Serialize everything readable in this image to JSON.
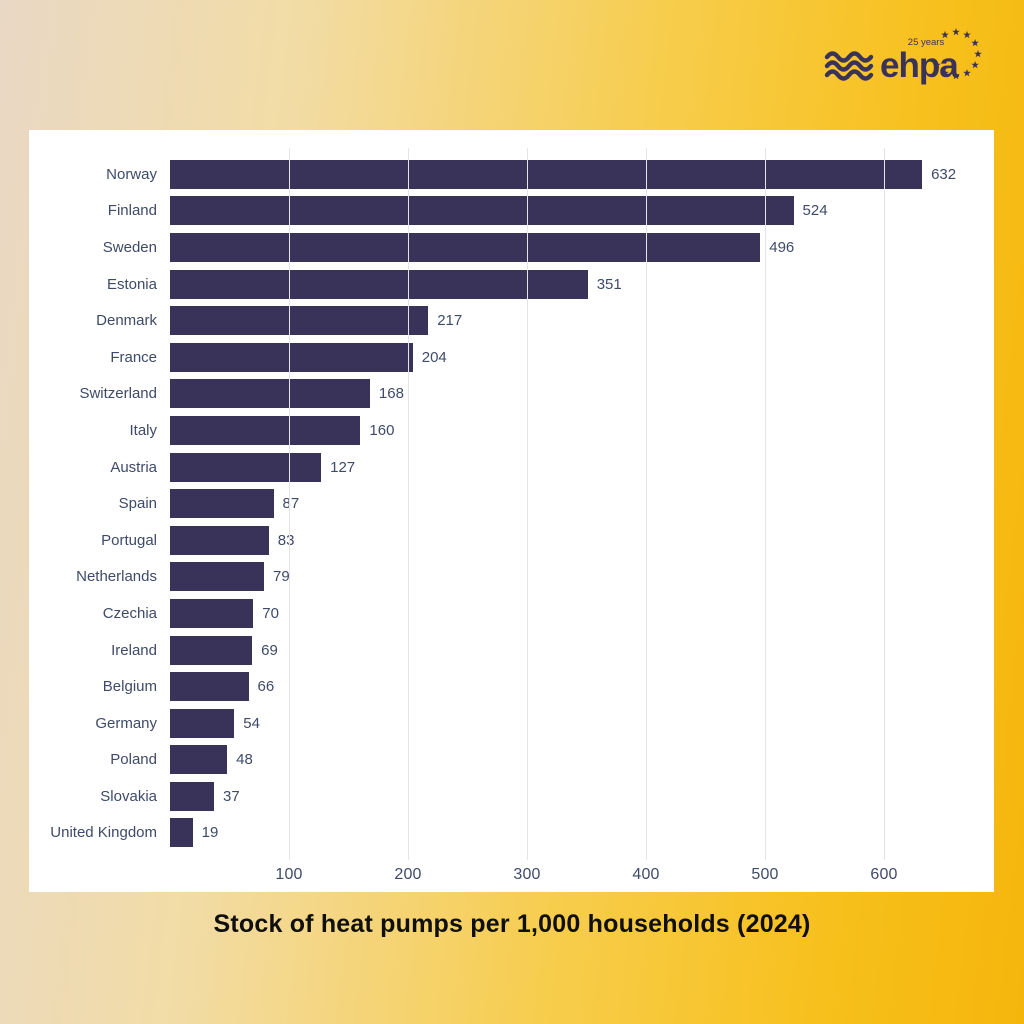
{
  "logo": {
    "brand": "ehpa",
    "badge": "25 years",
    "color": "#3a3359"
  },
  "chart_data": {
    "type": "bar",
    "orientation": "horizontal",
    "title": "Stock of heat pumps per 1,000 households (2024)",
    "categories": [
      "Norway",
      "Finland",
      "Sweden",
      "Estonia",
      "Denmark",
      "France",
      "Switzerland",
      "Italy",
      "Austria",
      "Spain",
      "Portugal",
      "Netherlands",
      "Czechia",
      "Ireland",
      "Belgium",
      "Germany",
      "Poland",
      "Slovakia",
      "United Kingdom"
    ],
    "values": [
      632,
      524,
      496,
      351,
      217,
      204,
      168,
      160,
      127,
      87,
      83,
      79,
      70,
      69,
      66,
      54,
      48,
      37,
      19
    ],
    "x_ticks": [
      100,
      200,
      300,
      400,
      500,
      600
    ],
    "xlim": [
      0,
      660
    ],
    "grid": true,
    "legend": false,
    "value_labels": true,
    "bar_color": "#3a3359",
    "label_color": "#3e4a68",
    "grid_color": "#e4e4e8"
  },
  "colors": {
    "background_left": "#e9d8c5",
    "background_right": "#f5b60c",
    "panel": "#ffffff",
    "title_text": "#0f0f0f"
  }
}
